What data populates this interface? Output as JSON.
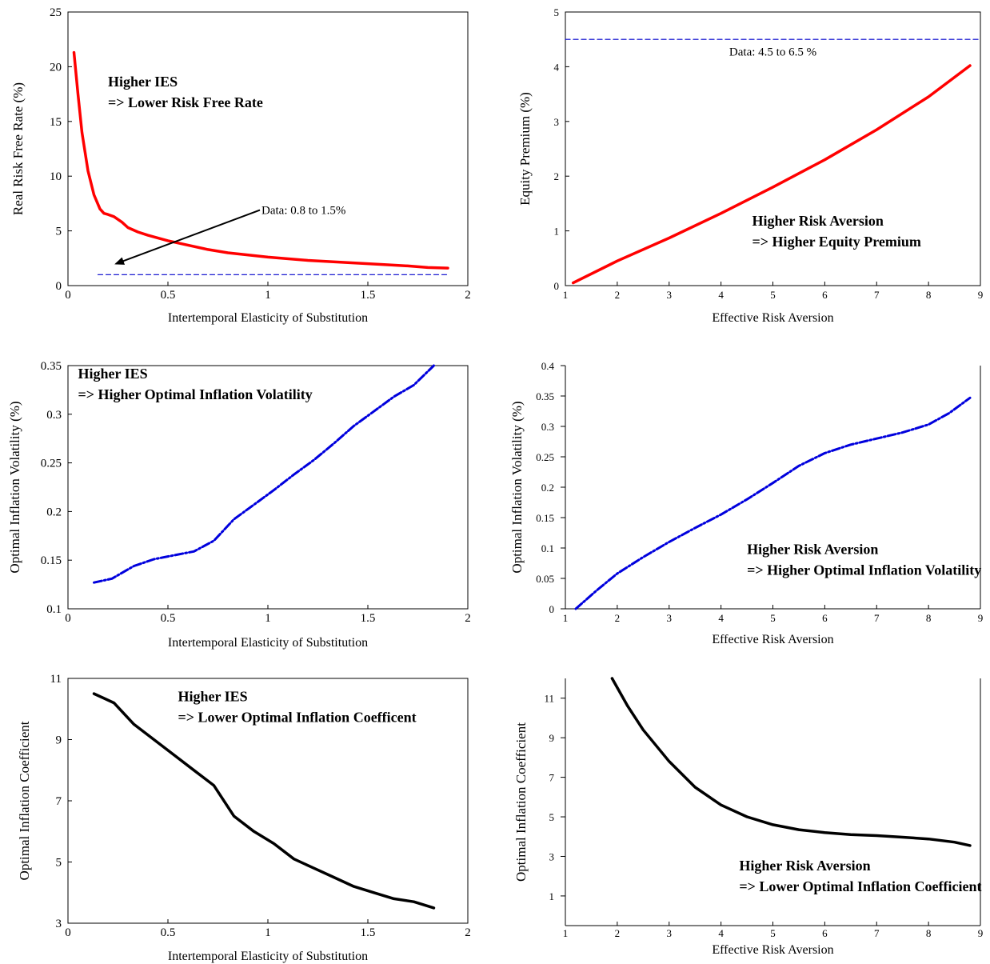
{
  "chart_data": [
    {
      "type": "line",
      "xlabel": "Intertemporal Elasticity of Substitution",
      "ylabel": "Real Risk Free Rate (%)",
      "xlim": [
        0,
        2
      ],
      "ylim": [
        0,
        25
      ],
      "xticks": [
        0,
        0.5,
        1,
        1.5,
        2
      ],
      "xtick_labels": [
        "0",
        "0.5",
        "1",
        "1.5",
        "2"
      ],
      "yticks": [
        0,
        5,
        10,
        15,
        20,
        25
      ],
      "ytick_labels": [
        "0",
        "5",
        "10",
        "15",
        "20",
        "25"
      ],
      "box": true,
      "grid": false,
      "series": [
        {
          "color": "#ff0000",
          "style": "solid",
          "x": [
            0.03,
            0.05,
            0.07,
            0.1,
            0.13,
            0.16,
            0.18,
            0.2,
            0.23,
            0.27,
            0.3,
            0.35,
            0.4,
            0.5,
            0.6,
            0.7,
            0.8,
            1.0,
            1.2,
            1.4,
            1.6,
            1.7,
            1.8,
            1.9
          ],
          "y": [
            21.3,
            17.5,
            14.0,
            10.5,
            8.3,
            7.0,
            6.6,
            6.5,
            6.3,
            5.8,
            5.3,
            4.9,
            4.6,
            4.1,
            3.7,
            3.3,
            3.0,
            2.6,
            2.3,
            2.1,
            1.9,
            1.8,
            1.65,
            1.6
          ]
        },
        {
          "color": "#0000cc",
          "style": "dashed",
          "x": [
            0.15,
            1.9
          ],
          "y": [
            1.0,
            1.0
          ]
        }
      ],
      "annotations": [
        {
          "lines": [
            "Higher IES",
            "=> Lower Risk Free Rate"
          ],
          "x": 0.2,
          "y": 18.2,
          "bold": true
        }
      ],
      "arrow": {
        "label": "Data: 0.8 to 1.5%",
        "from": [
          0.96,
          6.9
        ],
        "to": [
          0.24,
          2.0
        ]
      }
    },
    {
      "type": "line",
      "xlabel": "Effective Risk Aversion",
      "ylabel": "Equity Premium (%)",
      "xlim": [
        1,
        9
      ],
      "ylim": [
        0,
        5
      ],
      "xticks": [
        1,
        2,
        3,
        4,
        5,
        6,
        7,
        8,
        9
      ],
      "xtick_labels": [
        "1",
        "2",
        "3",
        "4",
        "5",
        "6",
        "7",
        "8",
        "9"
      ],
      "yticks": [
        0,
        1,
        2,
        3,
        4,
        5
      ],
      "ytick_labels": [
        "0",
        "1",
        "2",
        "3",
        "4",
        "5"
      ],
      "box": true,
      "grid": false,
      "series": [
        {
          "color": "#ff0000",
          "style": "solid",
          "x": [
            1.15,
            2,
            3,
            4,
            5,
            6,
            7,
            8,
            8.8
          ],
          "y": [
            0.05,
            0.45,
            0.87,
            1.32,
            1.8,
            2.3,
            2.85,
            3.45,
            4.02
          ]
        },
        {
          "color": "#0000cc",
          "style": "dashed",
          "x": [
            1,
            9
          ],
          "y": [
            4.5,
            4.5
          ]
        }
      ],
      "reference_label": {
        "text": "Data: 4.5 to 6.5 %",
        "x": 5,
        "y": 4.2
      },
      "annotations": [
        {
          "lines": [
            "Higher Risk Aversion",
            "=> Higher Equity Premium"
          ],
          "x": 4.6,
          "y": 1.1,
          "bold": true
        }
      ]
    },
    {
      "type": "line",
      "xlabel": "Intertemporal Elasticity of Substitution",
      "ylabel": "Optimal Inflation Volatility (%)",
      "xlim": [
        0,
        2
      ],
      "ylim": [
        0.1,
        0.35
      ],
      "xticks": [
        0,
        0.5,
        1,
        1.5,
        2
      ],
      "xtick_labels": [
        "0",
        "0.5",
        "1",
        "1.5",
        "2"
      ],
      "yticks": [
        0.1,
        0.15,
        0.2,
        0.25,
        0.3,
        0.35
      ],
      "ytick_labels": [
        "0.1",
        "0.15",
        "0.2",
        "0.25",
        "0.3",
        "0.35"
      ],
      "box": true,
      "grid": false,
      "series": [
        {
          "color": "#0000dd",
          "style": "dashdot",
          "x": [
            0.13,
            0.22,
            0.33,
            0.43,
            0.53,
            0.63,
            0.73,
            0.83,
            0.93,
            1.03,
            1.13,
            1.23,
            1.33,
            1.43,
            1.53,
            1.63,
            1.73,
            1.83
          ],
          "y": [
            0.127,
            0.131,
            0.144,
            0.151,
            0.155,
            0.159,
            0.17,
            0.192,
            0.207,
            0.222,
            0.238,
            0.253,
            0.27,
            0.288,
            0.303,
            0.318,
            0.33,
            0.35
          ]
        }
      ],
      "annotations": [
        {
          "lines": [
            "Higher IES",
            "=> Higher Optimal Inflation Volatility"
          ],
          "x": 0.05,
          "y": 0.337,
          "bold": true
        }
      ]
    },
    {
      "type": "line",
      "xlabel": "Effective Risk Aversion",
      "ylabel": "Optimal Inflation Volatility (%)",
      "xlim": [
        1,
        9
      ],
      "ylim": [
        0,
        0.4
      ],
      "xticks": [
        1,
        2,
        3,
        4,
        5,
        6,
        7,
        8,
        9
      ],
      "xtick_labels": [
        "1",
        "2",
        "3",
        "4",
        "5",
        "6",
        "7",
        "8",
        "9"
      ],
      "yticks": [
        0,
        0.05,
        0.1,
        0.15,
        0.2,
        0.25,
        0.3,
        0.35,
        0.4
      ],
      "ytick_labels": [
        "0",
        "0.05",
        "0.1",
        "0.15",
        "0.2",
        "0.25",
        "0.3",
        "0.35",
        "0.4"
      ],
      "box": false,
      "grid": false,
      "series": [
        {
          "color": "#0000dd",
          "style": "dashdot",
          "x": [
            1.2,
            1.6,
            2,
            2.5,
            3,
            3.5,
            4,
            4.5,
            5,
            5.5,
            6,
            6.5,
            7,
            7.5,
            8,
            8.4,
            8.8
          ],
          "y": [
            0.0,
            0.03,
            0.058,
            0.085,
            0.11,
            0.133,
            0.155,
            0.18,
            0.207,
            0.235,
            0.256,
            0.27,
            0.28,
            0.29,
            0.303,
            0.322,
            0.347
          ]
        }
      ],
      "annotations": [
        {
          "lines": [
            "Higher Risk Aversion",
            "=> Higher Optimal Inflation Volatility"
          ],
          "x": 4.5,
          "y": 0.09,
          "bold": true
        }
      ]
    },
    {
      "type": "line",
      "xlabel": "Intertemporal Elasticity of Substitution",
      "ylabel": "Optimal Inflation Coefficient",
      "xlim": [
        0,
        2
      ],
      "ylim": [
        3,
        11
      ],
      "xticks": [
        0,
        0.5,
        1,
        1.5,
        2
      ],
      "xtick_labels": [
        "0",
        "0.5",
        "1",
        "1.5",
        "2"
      ],
      "yticks": [
        3,
        5,
        7,
        9,
        11
      ],
      "ytick_labels": [
        "3",
        "5",
        "7",
        "9",
        "11"
      ],
      "box": true,
      "grid": false,
      "series": [
        {
          "color": "#000000",
          "style": "solid",
          "x": [
            0.13,
            0.23,
            0.33,
            0.43,
            0.53,
            0.63,
            0.73,
            0.83,
            0.93,
            1.03,
            1.13,
            1.23,
            1.33,
            1.43,
            1.53,
            1.63,
            1.73,
            1.83
          ],
          "y": [
            10.5,
            10.2,
            9.5,
            9.0,
            8.5,
            8.0,
            7.5,
            6.5,
            6.0,
            5.6,
            5.1,
            4.8,
            4.5,
            4.2,
            4.0,
            3.8,
            3.7,
            3.5
          ]
        }
      ],
      "annotations": [
        {
          "lines": [
            "Higher IES",
            "=> Lower Optimal Inflation Coefficent"
          ],
          "x": 0.55,
          "y": 10.25,
          "bold": true
        }
      ]
    },
    {
      "type": "line",
      "xlabel": "Effective Risk Aversion",
      "ylabel": "Optimal Inflation Coefficient",
      "xlim": [
        1,
        9
      ],
      "ylim": [
        -0.5,
        12
      ],
      "xticks": [
        1,
        2,
        3,
        4,
        5,
        6,
        7,
        8,
        9
      ],
      "xtick_labels": [
        "1",
        "2",
        "3",
        "4",
        "5",
        "6",
        "7",
        "8",
        "9"
      ],
      "yticks": [
        1,
        3,
        5,
        7,
        9,
        11
      ],
      "ytick_labels": [
        "1",
        "3",
        "5",
        "7",
        "9",
        "11"
      ],
      "box": false,
      "grid": false,
      "series": [
        {
          "color": "#000000",
          "style": "solid",
          "x": [
            1.9,
            2.2,
            2.5,
            3,
            3.5,
            4,
            4.5,
            5,
            5.5,
            6,
            6.5,
            7,
            7.5,
            8,
            8.5,
            8.8
          ],
          "y": [
            12.0,
            10.6,
            9.4,
            7.8,
            6.5,
            5.6,
            5.0,
            4.6,
            4.35,
            4.2,
            4.1,
            4.05,
            3.97,
            3.88,
            3.72,
            3.55
          ]
        }
      ],
      "annotations": [
        {
          "lines": [
            "Higher Risk Aversion",
            "=> Lower Optimal Inflation Coefficient"
          ],
          "x": 4.35,
          "y": 2.3,
          "bold": true
        }
      ]
    }
  ]
}
